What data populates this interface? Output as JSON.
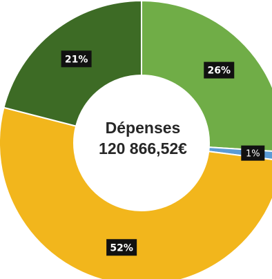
{
  "chart_data": {
    "type": "pie",
    "donut": true,
    "slices": [
      {
        "label": "26%",
        "value": 26,
        "color": "#70ad47",
        "label_style": "dark"
      },
      {
        "label": "1%",
        "value": 1,
        "color": "#5b9bd5",
        "label_style": "dark-light"
      },
      {
        "label": "52%",
        "value": 52,
        "color": "#f2b61c",
        "label_style": "dark"
      },
      {
        "label": "21%",
        "value": 21,
        "color": "#3d6b25",
        "label_style": "dark"
      }
    ],
    "center_title": "Dépenses",
    "center_value": "120 866,52€",
    "start_angle_deg": 0,
    "legend": "none"
  }
}
